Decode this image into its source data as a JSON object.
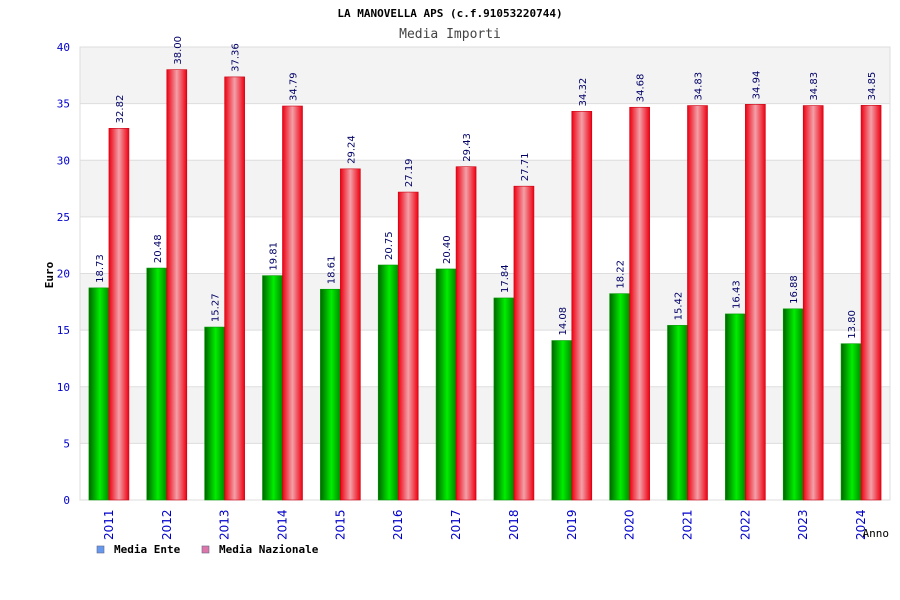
{
  "chart_data": {
    "type": "bar",
    "title": "LA MANOVELLA APS (c.f.91053220744)",
    "subtitle": "Media Importi",
    "xlabel": "Anno",
    "ylabel": "Euro",
    "ylim": [
      0,
      40
    ],
    "yticks": [
      "0",
      "5",
      "10",
      "15",
      "20",
      "25",
      "30",
      "35",
      "40"
    ],
    "grid": true,
    "legend_position": "bottom-left",
    "categories": [
      "2011",
      "2012",
      "2013",
      "2014",
      "2015",
      "2016",
      "2017",
      "2018",
      "2019",
      "2020",
      "2021",
      "2022",
      "2023",
      "2024"
    ],
    "series": [
      {
        "name": "Media Ente",
        "color": "#00cc00",
        "legend_color": "#6699ee",
        "values": [
          18.73,
          20.48,
          15.27,
          19.81,
          18.61,
          20.75,
          20.4,
          17.84,
          14.08,
          18.22,
          15.42,
          16.43,
          16.88,
          13.8
        ],
        "labels": [
          "18.73",
          "20.48",
          "15.27",
          "19.81",
          "18.61",
          "20.75",
          "20.40",
          "17.84",
          "14.08",
          "18.22",
          "15.42",
          "16.43",
          "16.88",
          "13.80"
        ]
      },
      {
        "name": "Media Nazionale",
        "color": "#ee1122",
        "legend_color": "#dd77aa",
        "values": [
          32.82,
          38.0,
          37.36,
          34.79,
          29.24,
          27.19,
          29.43,
          27.71,
          34.32,
          34.68,
          34.83,
          34.94,
          34.83,
          34.85
        ],
        "labels": [
          "32.82",
          "38.00",
          "37.36",
          "34.79",
          "29.24",
          "27.19",
          "29.43",
          "27.71",
          "34.32",
          "34.68",
          "34.83",
          "34.94",
          "34.83",
          "34.85"
        ]
      }
    ]
  }
}
